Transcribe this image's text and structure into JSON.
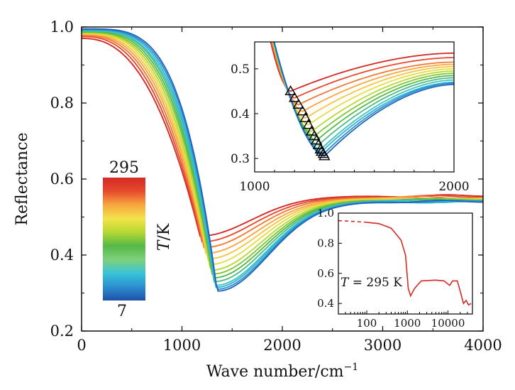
{
  "chart_data": [
    {
      "type": "line",
      "title": "",
      "xlabel": "Wave number/cm",
      "xlabel_sup": "−1",
      "ylabel": "Reflectance",
      "xlim": [
        0,
        4000
      ],
      "ylim": [
        0.2,
        1.0
      ],
      "xticks": [
        0,
        1000,
        2000,
        3000,
        4000
      ],
      "yticks": [
        "0.2",
        "0.4",
        "0.6",
        "0.8",
        "1.0"
      ],
      "grid": false,
      "colorbar": {
        "label_italic": "T",
        "label_rest": "/K",
        "max_label": "295",
        "min_label": "7",
        "colors": [
          "#1f4fa8",
          "#2c8fd0",
          "#38c4d8",
          "#7fd07a",
          "#55b947",
          "#b7d833",
          "#f4e34a",
          "#f7a640",
          "#e64a2e",
          "#d42a26"
        ]
      },
      "series_count": 14,
      "series_min": [
        0.45,
        0.435,
        0.42,
        0.405,
        0.39,
        0.375,
        0.36,
        0.35,
        0.34,
        0.33,
        0.32,
        0.315,
        0.31,
        0.305
      ],
      "series_min_x": [
        1180,
        1200,
        1220,
        1240,
        1255,
        1270,
        1285,
        1300,
        1310,
        1320,
        1330,
        1335,
        1345,
        1350
      ],
      "series_start": [
        0.97,
        0.975,
        0.978,
        0.98,
        0.982,
        0.984,
        0.985,
        0.986,
        0.988,
        0.99,
        0.99,
        0.992,
        0.993,
        0.995
      ],
      "series_tail": [
        0.555,
        0.553,
        0.551,
        0.549,
        0.548,
        0.547,
        0.546,
        0.545,
        0.544,
        0.543,
        0.542,
        0.541,
        0.541,
        0.54
      ],
      "series_colors": [
        "#d42a26",
        "#e64a2e",
        "#f07a36",
        "#f7a640",
        "#f4c642",
        "#e8dc44",
        "#b7d833",
        "#7fc63c",
        "#55b947",
        "#4dbb8a",
        "#3fc3c0",
        "#2fb3d6",
        "#2c8fd0",
        "#2366b8"
      ]
    },
    {
      "type": "line",
      "title": "",
      "xlim": [
        1000,
        2000
      ],
      "ylim": [
        0.27,
        0.56
      ],
      "xticks": [
        "1000",
        "2000"
      ],
      "yticks": [
        "0.3",
        "0.4",
        "0.5"
      ],
      "markers": "triangle",
      "minima_x": [
        1180,
        1200,
        1220,
        1240,
        1255,
        1270,
        1285,
        1300,
        1310,
        1320,
        1330,
        1335,
        1345,
        1350
      ],
      "minima_y": [
        0.45,
        0.435,
        0.42,
        0.405,
        0.39,
        0.375,
        0.36,
        0.35,
        0.34,
        0.33,
        0.32,
        0.315,
        0.31,
        0.305
      ],
      "end_values": [
        0.535,
        0.525,
        0.515,
        0.51,
        0.505,
        0.5,
        0.495,
        0.49,
        0.485,
        0.48,
        0.475,
        0.47,
        0.468,
        0.465
      ]
    },
    {
      "type": "line",
      "title": "",
      "x_scale": "log",
      "xlim": [
        20,
        40000
      ],
      "ylim": [
        0.33,
        1.0
      ],
      "xticks": [
        "100",
        "1000",
        "10000"
      ],
      "yticks": [
        "0.4",
        "0.6",
        "0.8",
        "1.0"
      ],
      "annotation_italic": "T",
      "annotation_rest": " = 295 K",
      "series_color": "#d42a26",
      "dashed_points": [
        [
          20,
          0.95
        ],
        [
          45,
          0.945
        ],
        [
          90,
          0.94
        ]
      ],
      "solid_points": [
        [
          90,
          0.94
        ],
        [
          200,
          0.93
        ],
        [
          400,
          0.9
        ],
        [
          700,
          0.82
        ],
        [
          900,
          0.72
        ],
        [
          1050,
          0.5
        ],
        [
          1200,
          0.45
        ],
        [
          1500,
          0.5
        ],
        [
          2200,
          0.55
        ],
        [
          5000,
          0.555
        ],
        [
          8000,
          0.55
        ],
        [
          11000,
          0.52
        ],
        [
          13000,
          0.55
        ],
        [
          17000,
          0.55
        ],
        [
          21000,
          0.46
        ],
        [
          24000,
          0.4
        ],
        [
          28000,
          0.42
        ],
        [
          32000,
          0.39
        ],
        [
          37000,
          0.4
        ]
      ]
    }
  ]
}
